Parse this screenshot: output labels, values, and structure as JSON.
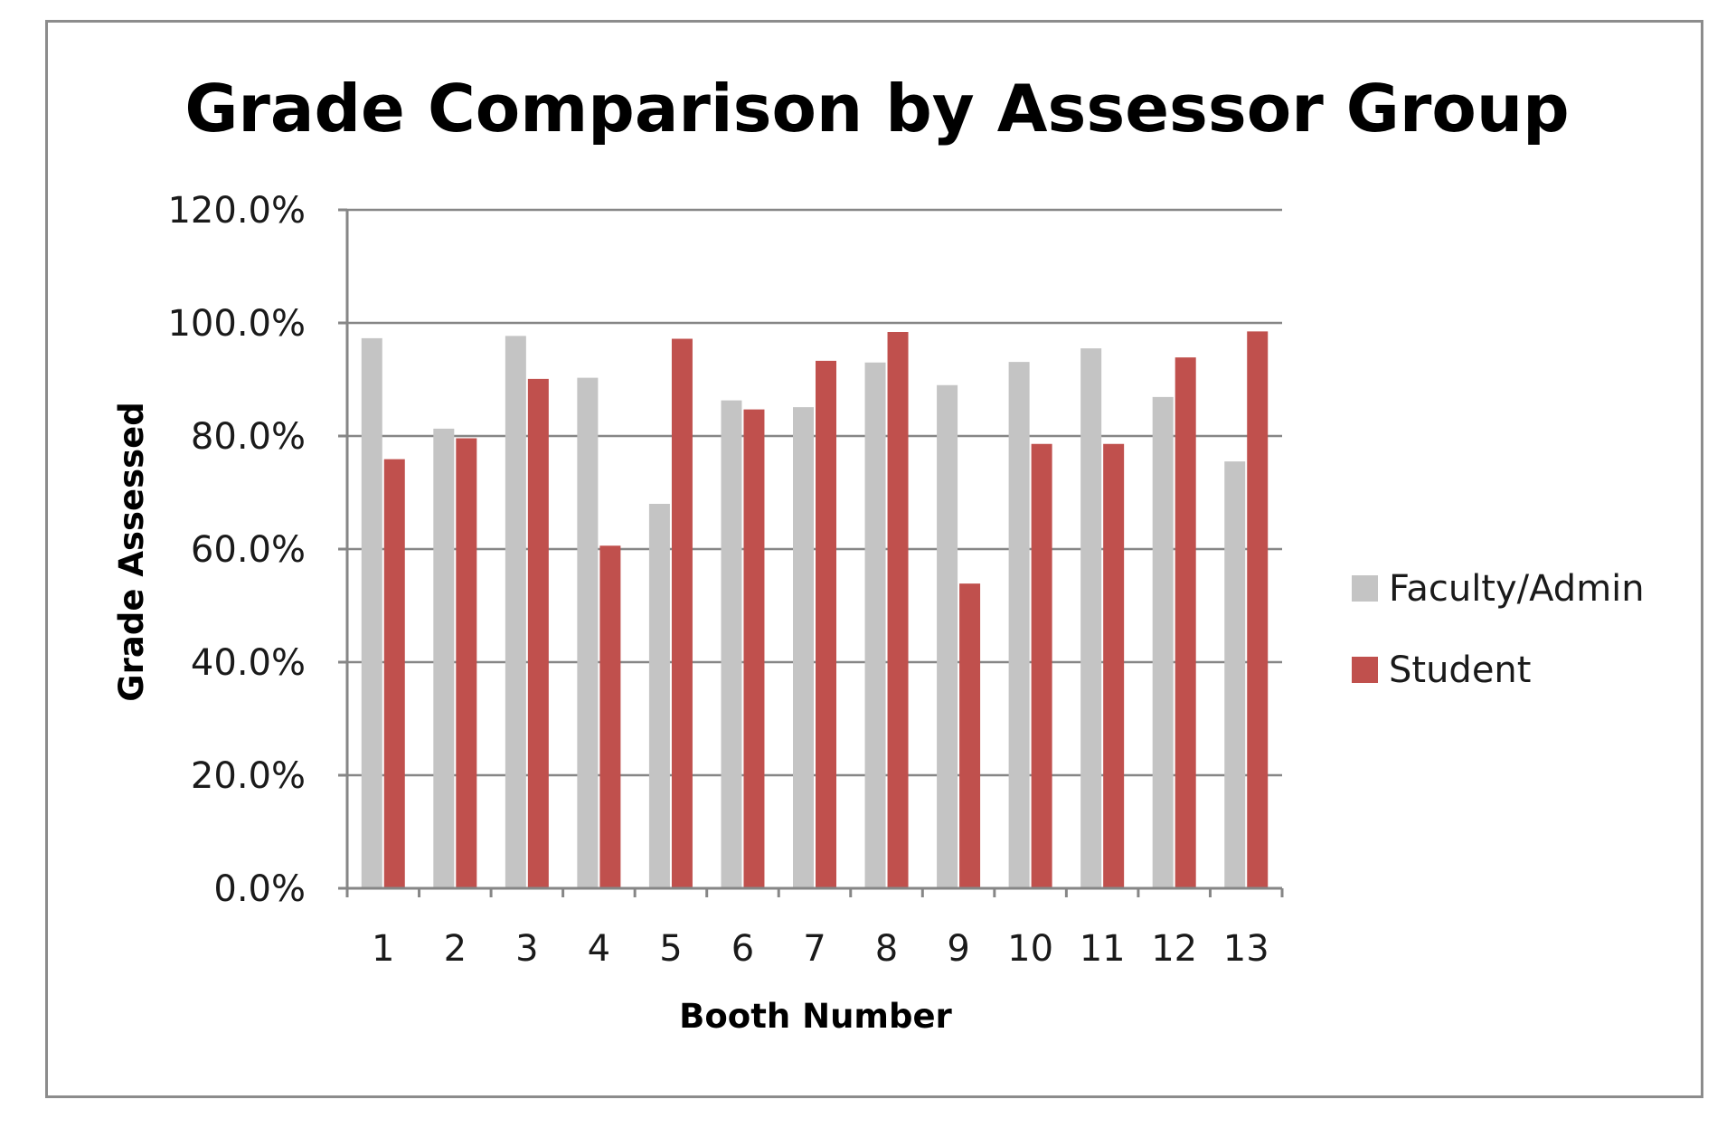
{
  "chart_data": {
    "type": "bar",
    "title": "Grade Comparison by Assessor Group",
    "xlabel": "Booth Number",
    "ylabel": "Grade Assessed",
    "categories": [
      "1",
      "2",
      "3",
      "4",
      "5",
      "6",
      "7",
      "8",
      "9",
      "10",
      "11",
      "12",
      "13"
    ],
    "y_ticks": [
      "0.0%",
      "20.0%",
      "40.0%",
      "60.0%",
      "80.0%",
      "100.0%",
      "120.0%"
    ],
    "ylim": [
      0,
      120
    ],
    "grid": true,
    "legend_position": "right",
    "series": [
      {
        "name": "Faculty/Admin",
        "color": "#c4c4c4",
        "values": [
          97.3,
          81.3,
          97.7,
          90.3,
          68.0,
          86.3,
          85.1,
          93.0,
          89.0,
          93.1,
          95.5,
          86.9,
          75.5
        ]
      },
      {
        "name": "Student",
        "color": "#c0504d",
        "values": [
          75.9,
          79.6,
          90.1,
          60.6,
          97.2,
          84.7,
          93.3,
          98.4,
          53.9,
          78.6,
          78.6,
          93.9,
          98.5
        ]
      }
    ]
  }
}
